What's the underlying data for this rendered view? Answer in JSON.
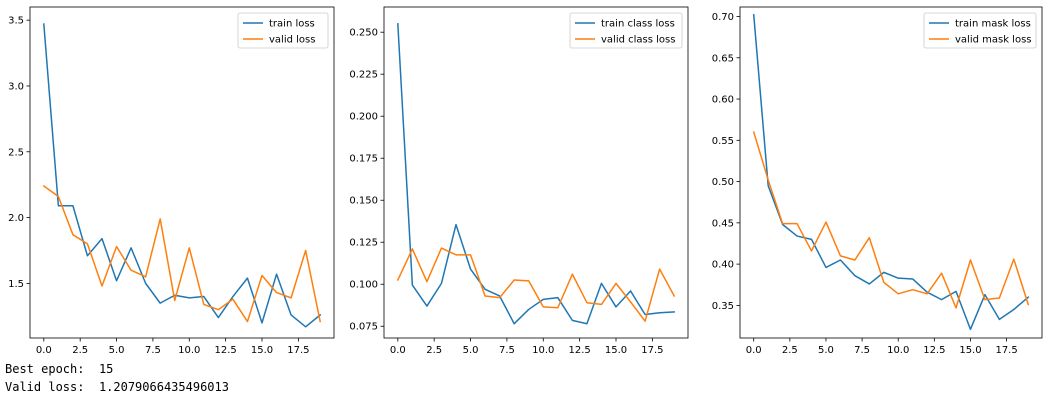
{
  "chart_data": [
    {
      "type": "line",
      "title": "",
      "xlabel": "",
      "ylabel": "",
      "legend_position": "top-right",
      "grid": false,
      "xlim": [
        -0.95,
        19.95
      ],
      "ylim": [
        1.085,
        3.6
      ],
      "xticks": [
        0.0,
        2.5,
        5.0,
        7.5,
        10.0,
        12.5,
        15.0,
        17.5
      ],
      "xtick_labels": [
        "0.0",
        "2.5",
        "5.0",
        "7.5",
        "10.0",
        "12.5",
        "15.0",
        "17.5"
      ],
      "yticks": [
        1.5,
        2.0,
        2.5,
        3.0,
        3.5
      ],
      "ytick_labels": [
        "1.5",
        "2.0",
        "2.5",
        "3.0",
        "3.5"
      ],
      "x": [
        0,
        1,
        2,
        3,
        4,
        5,
        6,
        7,
        8,
        9,
        10,
        11,
        12,
        13,
        14,
        15,
        16,
        17,
        18,
        19
      ],
      "series": [
        {
          "name": "train loss",
          "color": "#1f77b4",
          "values": [
            3.47,
            2.09,
            2.09,
            1.71,
            1.84,
            1.52,
            1.77,
            1.5,
            1.35,
            1.41,
            1.39,
            1.4,
            1.24,
            1.4,
            1.54,
            1.2,
            1.57,
            1.26,
            1.17,
            1.26
          ]
        },
        {
          "name": "valid loss",
          "color": "#ff7f0e",
          "values": [
            2.24,
            2.16,
            1.87,
            1.8,
            1.48,
            1.78,
            1.6,
            1.55,
            1.99,
            1.37,
            1.77,
            1.34,
            1.3,
            1.38,
            1.21,
            1.56,
            1.43,
            1.39,
            1.75,
            1.21
          ]
        }
      ]
    },
    {
      "type": "line",
      "title": "",
      "xlabel": "",
      "ylabel": "",
      "legend_position": "top-right",
      "grid": false,
      "xlim": [
        -0.95,
        19.95
      ],
      "ylim": [
        0.068,
        0.265
      ],
      "xticks": [
        0.0,
        2.5,
        5.0,
        7.5,
        10.0,
        12.5,
        15.0,
        17.5
      ],
      "xtick_labels": [
        "0.0",
        "2.5",
        "5.0",
        "7.5",
        "10.0",
        "12.5",
        "15.0",
        "17.5"
      ],
      "yticks": [
        0.075,
        0.1,
        0.125,
        0.15,
        0.175,
        0.2,
        0.225,
        0.25
      ],
      "ytick_labels": [
        "0.075",
        "0.100",
        "0.125",
        "0.150",
        "0.175",
        "0.200",
        "0.225",
        "0.250"
      ],
      "x": [
        0,
        1,
        2,
        3,
        4,
        5,
        6,
        7,
        8,
        9,
        10,
        11,
        12,
        13,
        14,
        15,
        16,
        17,
        18,
        19
      ],
      "series": [
        {
          "name": "train class loss",
          "color": "#1f77b4",
          "values": [
            0.255,
            0.0995,
            0.087,
            0.1005,
            0.1355,
            0.109,
            0.097,
            0.093,
            0.0765,
            0.085,
            0.091,
            0.092,
            0.0785,
            0.0765,
            0.1005,
            0.0865,
            0.096,
            0.082,
            0.083,
            0.0835
          ]
        },
        {
          "name": "valid class loss",
          "color": "#ff7f0e",
          "values": [
            0.1025,
            0.121,
            0.1015,
            0.1215,
            0.1175,
            0.1175,
            0.093,
            0.092,
            0.1025,
            0.102,
            0.0865,
            0.086,
            0.106,
            0.089,
            0.088,
            0.1005,
            0.0895,
            0.078,
            0.109,
            0.093
          ]
        }
      ]
    },
    {
      "type": "line",
      "title": "",
      "xlabel": "",
      "ylabel": "",
      "legend_position": "top-right",
      "grid": false,
      "xlim": [
        -0.95,
        19.95
      ],
      "ylim": [
        0.3105,
        0.7115
      ],
      "xticks": [
        0.0,
        2.5,
        5.0,
        7.5,
        10.0,
        12.5,
        15.0,
        17.5
      ],
      "xtick_labels": [
        "0.0",
        "2.5",
        "5.0",
        "7.5",
        "10.0",
        "12.5",
        "15.0",
        "17.5"
      ],
      "yticks": [
        0.35,
        0.4,
        0.45,
        0.5,
        0.55,
        0.6,
        0.65,
        0.7
      ],
      "ytick_labels": [
        "0.35",
        "0.40",
        "0.45",
        "0.50",
        "0.55",
        "0.60",
        "0.65",
        "0.70"
      ],
      "x": [
        0,
        1,
        2,
        3,
        4,
        5,
        6,
        7,
        8,
        9,
        10,
        11,
        12,
        13,
        14,
        15,
        16,
        17,
        18,
        19
      ],
      "series": [
        {
          "name": "train mask loss",
          "color": "#1f77b4",
          "values": [
            0.702,
            0.495,
            0.448,
            0.434,
            0.43,
            0.396,
            0.405,
            0.386,
            0.376,
            0.39,
            0.383,
            0.382,
            0.366,
            0.357,
            0.367,
            0.321,
            0.363,
            0.333,
            0.345,
            0.36
          ]
        },
        {
          "name": "valid mask loss",
          "color": "#ff7f0e",
          "values": [
            0.56,
            0.502,
            0.449,
            0.449,
            0.416,
            0.451,
            0.41,
            0.405,
            0.432,
            0.378,
            0.364,
            0.369,
            0.364,
            0.389,
            0.347,
            0.405,
            0.357,
            0.359,
            0.406,
            0.351
          ]
        }
      ]
    }
  ],
  "output": {
    "best_epoch_label": "Best epoch:",
    "best_epoch_value": "15",
    "valid_loss_label": "Valid loss:",
    "valid_loss_value": "1.2079066435496013"
  }
}
